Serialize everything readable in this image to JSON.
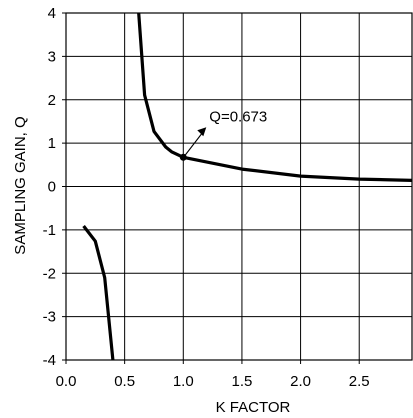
{
  "chart_data": {
    "type": "line",
    "xlabel": "K FACTOR",
    "ylabel": "SAMPLING GAIN, Q",
    "xlim": [
      0,
      2.95
    ],
    "ylim": [
      -4,
      4
    ],
    "grid": true,
    "x_ticks": [
      "0.0",
      "0.5",
      "1.0",
      "1.5",
      "2.0",
      "2.5"
    ],
    "x_tick_values": [
      0,
      0.5,
      1.0,
      1.5,
      2.0,
      2.5
    ],
    "y_ticks": [
      "4",
      "3",
      "2",
      "1",
      "0",
      "-1",
      "-2",
      "-3",
      "-4"
    ],
    "y_tick_values": [
      4,
      3,
      2,
      1,
      0,
      -1,
      -2,
      -3,
      -4
    ],
    "series": [
      {
        "color": "#000000",
        "segments": [
          [
            [
              0.15,
              -0.91
            ],
            [
              0.25,
              -1.26
            ],
            [
              0.33,
              -2.1
            ],
            [
              0.4,
              -4.0
            ]
          ],
          [
            [
              0.62,
              4.0
            ],
            [
              0.67,
              2.11
            ],
            [
              0.75,
              1.27
            ],
            [
              0.85,
              0.91
            ],
            [
              0.9,
              0.8
            ],
            [
              1.0,
              0.673
            ],
            [
              1.5,
              0.4
            ],
            [
              2.0,
              0.24
            ],
            [
              2.5,
              0.17
            ],
            [
              2.95,
              0.14
            ]
          ]
        ]
      }
    ],
    "annotation": {
      "text": "Q=0.673",
      "point": [
        1.0,
        0.673
      ]
    }
  }
}
